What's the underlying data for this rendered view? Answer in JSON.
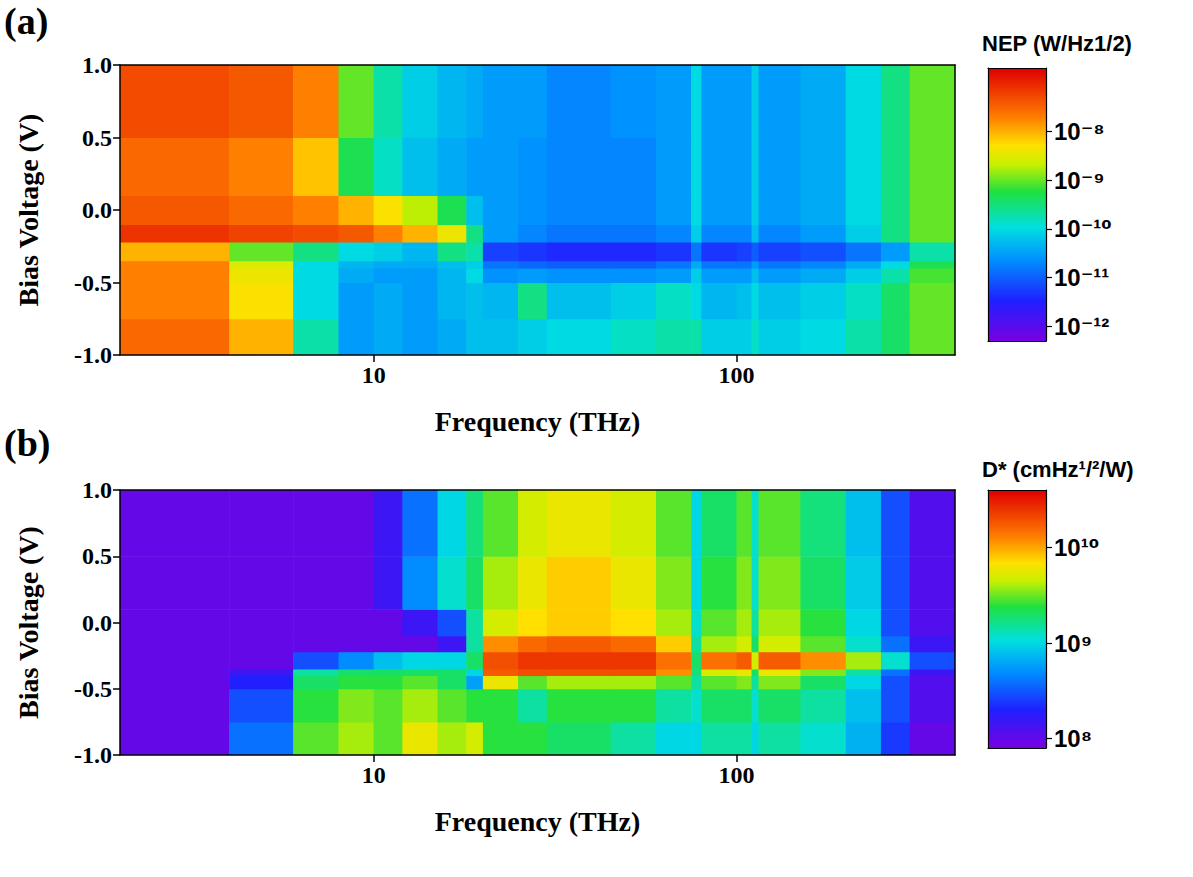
{
  "chart_data": [
    {
      "type": "heatmap",
      "title": "(a)",
      "x_label": "Frequency (THz)",
      "y_label": "Bias Voltage (V)",
      "log": "x",
      "grid": false,
      "xlim": [
        2,
        400
      ],
      "xticks": [
        10,
        100
      ],
      "ylim": [
        -1,
        1
      ],
      "yticks": [
        {
          "value": -1,
          "label": "-1.0"
        },
        {
          "value": -0.5,
          "label": "-0.5"
        },
        {
          "value": 0,
          "label": "0.0"
        },
        {
          "value": 0.5,
          "label": "0.5"
        },
        {
          "value": 1,
          "label": "1.0"
        }
      ],
      "x_edges": [
        2,
        4,
        6,
        8,
        10,
        12,
        15,
        18,
        20,
        25,
        30,
        45,
        60,
        75,
        80,
        100,
        110,
        115,
        150,
        200,
        250,
        300,
        400
      ],
      "y_edges": [
        -1,
        -0.75,
        -0.5,
        -0.4,
        -0.35,
        -0.22,
        -0.1,
        0.1,
        0.5,
        1
      ],
      "values": [
        [
          3e-08,
          1e-08,
          2e-10,
          3e-11,
          4e-11,
          3e-11,
          4e-11,
          6e-11,
          6e-11,
          8e-11,
          1e-10,
          1.5e-10,
          2e-10,
          2e-10,
          8e-11,
          8e-11,
          1.5e-10,
          8e-11,
          1e-10,
          2e-10,
          4e-10,
          1e-09
        ],
        [
          2e-08,
          5e-09,
          1e-10,
          3e-11,
          4e-11,
          3e-11,
          5e-11,
          6e-11,
          5e-11,
          3e-10,
          6e-11,
          8e-11,
          1.5e-10,
          1e-10,
          5e-11,
          6e-11,
          1e-10,
          6e-11,
          8e-11,
          1.5e-10,
          4e-10,
          1e-09
        ],
        [
          2e-08,
          4e-09,
          1e-10,
          4e-11,
          3e-11,
          3e-11,
          5e-11,
          1e-10,
          2.5e-11,
          3e-11,
          2.5e-11,
          2.5e-11,
          3e-11,
          8e-11,
          3e-11,
          3e-11,
          6e-11,
          3e-11,
          4e-11,
          8e-11,
          2e-10,
          8e-10
        ],
        [
          2e-08,
          3e-09,
          1e-10,
          5e-11,
          4e-11,
          4e-11,
          6e-11,
          8e-11,
          1.5e-11,
          1.2e-11,
          1e-11,
          1e-11,
          1.5e-11,
          4e-11,
          1.5e-11,
          1.5e-11,
          3e-11,
          1.5e-11,
          2e-11,
          4e-11,
          1e-10,
          5e-10
        ],
        [
          1e-08,
          1e-09,
          3e-10,
          1e-10,
          8e-11,
          5e-11,
          3e-10,
          2e-10,
          6e-12,
          5e-12,
          4e-12,
          4e-12,
          5e-12,
          1.5e-11,
          5e-12,
          6e-12,
          1e-11,
          6e-12,
          8e-12,
          1.5e-11,
          3e-11,
          2e-10
        ],
        [
          8e-08,
          6e-08,
          5e-08,
          4e-08,
          2e-08,
          1e-08,
          4e-09,
          3e-10,
          3e-11,
          2e-11,
          1.5e-11,
          1.5e-11,
          2e-11,
          8e-11,
          2e-11,
          2e-11,
          6e-11,
          2e-11,
          3e-11,
          8e-11,
          3e-10,
          1e-09
        ],
        [
          4e-08,
          3e-08,
          2e-08,
          1e-08,
          5e-09,
          2e-09,
          5e-10,
          6e-11,
          3e-11,
          2.5e-11,
          2e-11,
          2e-11,
          3e-11,
          1e-10,
          3e-11,
          3e-11,
          8e-11,
          3e-11,
          4e-11,
          1e-10,
          3e-10,
          1e-09
        ],
        [
          3e-08,
          2e-08,
          8e-09,
          5e-10,
          1.5e-10,
          6e-11,
          4e-11,
          3e-11,
          3e-11,
          2.5e-11,
          2e-11,
          2e-11,
          3e-11,
          1e-10,
          3e-11,
          3e-11,
          8e-11,
          3e-11,
          4e-11,
          1e-10,
          3e-10,
          1e-09
        ],
        [
          5e-08,
          4e-08,
          2e-08,
          1e-09,
          2e-10,
          8e-11,
          5e-11,
          4e-11,
          3e-11,
          3e-11,
          2e-11,
          2.5e-11,
          3e-11,
          1e-10,
          3e-11,
          3e-11,
          8e-11,
          3e-11,
          4e-11,
          1e-10,
          3e-10,
          1e-09
        ]
      ],
      "colorbar_label": "NEP (W/Hz1/2)",
      "colorbar_range": [
        5e-13,
        2e-07
      ],
      "colorbar_ticks": [
        {
          "value": 1e-08,
          "label": "10⁻⁸"
        },
        {
          "value": 1e-09,
          "label": "10⁻⁹"
        },
        {
          "value": 1e-10,
          "label": "10⁻¹⁰"
        },
        {
          "value": 1e-11,
          "label": "10⁻¹¹"
        },
        {
          "value": 1e-12,
          "label": "10⁻¹²"
        }
      ]
    },
    {
      "type": "heatmap",
      "title": "(b)",
      "x_label": "Frequency (THz)",
      "y_label": "Bias Voltage (V)",
      "log": "x",
      "grid": false,
      "xlim": [
        2,
        400
      ],
      "xticks": [
        10,
        100
      ],
      "ylim": [
        -1,
        1
      ],
      "yticks": [
        {
          "value": -1,
          "label": "-1.0"
        },
        {
          "value": -0.5,
          "label": "-0.5"
        },
        {
          "value": 0,
          "label": "0.0"
        },
        {
          "value": 0.5,
          "label": "0.5"
        },
        {
          "value": 1,
          "label": "1.0"
        }
      ],
      "x_edges": [
        2,
        4,
        6,
        8,
        10,
        12,
        15,
        18,
        20,
        25,
        30,
        45,
        60,
        75,
        80,
        100,
        110,
        115,
        150,
        200,
        250,
        300,
        400
      ],
      "y_edges": [
        -1,
        -0.75,
        -0.5,
        -0.4,
        -0.35,
        -0.22,
        -0.1,
        0.1,
        0.5,
        1
      ],
      "values": [
        [
          100000000.0,
          400000000.0,
          3000000000.0,
          4000000000.0,
          3000000000.0,
          6000000000.0,
          4000000000.0,
          5000000000.0,
          2500000000.0,
          2500000000.0,
          2000000000.0,
          1500000000.0,
          1000000000.0,
          1000000000.0,
          1500000000.0,
          1500000000.0,
          1000000000.0,
          1500000000.0,
          1200000000.0,
          700000000.0,
          250000000.0,
          100000000.0
        ],
        [
          100000000.0,
          300000000.0,
          2500000000.0,
          3500000000.0,
          3000000000.0,
          4000000000.0,
          3000000000.0,
          2500000000.0,
          2500000000.0,
          1500000000.0,
          2500000000.0,
          2500000000.0,
          1500000000.0,
          1200000000.0,
          2000000000.0,
          2000000000.0,
          1200000000.0,
          2000000000.0,
          1500000000.0,
          800000000.0,
          300000000.0,
          120000000.0
        ],
        [
          100000000.0,
          200000000.0,
          2000000000.0,
          2500000000.0,
          2500000000.0,
          3000000000.0,
          2000000000.0,
          600000000.0,
          6000000000.0,
          3000000000.0,
          4000000000.0,
          4000000000.0,
          3000000000.0,
          1500000000.0,
          3000000000.0,
          3500000000.0,
          1500000000.0,
          3500000000.0,
          2000000000.0,
          1000000000.0,
          300000000.0,
          120000000.0
        ],
        [
          100000000.0,
          150000000.0,
          1500000000.0,
          2000000000.0,
          2000000000.0,
          2000000000.0,
          2000000000.0,
          1000000000.0,
          18000000000.0,
          20000000000.0,
          20000000000.0,
          20000000000.0,
          12000000000.0,
          1800000000.0,
          5000000000.0,
          6000000000.0,
          2000000000.0,
          6000000000.0,
          3500000000.0,
          1500000000.0,
          400000000.0,
          150000000.0
        ],
        [
          100000000.0,
          100000000.0,
          300000000.0,
          500000000.0,
          800000000.0,
          1000000000.0,
          1000000000.0,
          2000000000.0,
          20000000000.0,
          25000000000.0,
          25000000000.0,
          25000000000.0,
          15000000000.0,
          2000000000.0,
          15000000000.0,
          18000000000.0,
          5000000000.0,
          18000000000.0,
          12000000000.0,
          4000000000.0,
          1200000000.0,
          300000000.0
        ],
        [
          100000000.0,
          100000000.0,
          100000000.0,
          100000000.0,
          100000000.0,
          100000000.0,
          150000000.0,
          1500000000.0,
          12000000000.0,
          16000000000.0,
          18000000000.0,
          16000000000.0,
          8000000000.0,
          1500000000.0,
          4000000000.0,
          5000000000.0,
          2000000000.0,
          5000000000.0,
          3000000000.0,
          1200000000.0,
          400000000.0,
          150000000.0
        ],
        [
          100000000.0,
          100000000.0,
          100000000.0,
          100000000.0,
          100000000.0,
          150000000.0,
          300000000.0,
          1500000000.0,
          5000000000.0,
          7000000000.0,
          8000000000.0,
          7000000000.0,
          4000000000.0,
          1200000000.0,
          3000000000.0,
          4000000000.0,
          1500000000.0,
          4000000000.0,
          2500000000.0,
          1000000000.0,
          300000000.0,
          120000000.0
        ],
        [
          100000000.0,
          100000000.0,
          100000000.0,
          100000000.0,
          150000000.0,
          500000000.0,
          1200000000.0,
          2000000000.0,
          4000000000.0,
          6000000000.0,
          8000000000.0,
          6000000000.0,
          3500000000.0,
          1000000000.0,
          2500000000.0,
          3500000000.0,
          1200000000.0,
          3500000000.0,
          2000000000.0,
          900000000.0,
          300000000.0,
          120000000.0
        ],
        [
          100000000.0,
          100000000.0,
          100000000.0,
          100000000.0,
          150000000.0,
          400000000.0,
          1000000000.0,
          1800000000.0,
          3000000000.0,
          5000000000.0,
          6000000000.0,
          5000000000.0,
          3000000000.0,
          1000000000.0,
          2000000000.0,
          3000000000.0,
          1200000000.0,
          3000000000.0,
          1800000000.0,
          800000000.0,
          300000000.0,
          120000000.0
        ]
      ],
      "colorbar_label": "D* (cmHz¹/²/W)",
      "colorbar_range": [
        80000000.0,
        40000000000.0
      ],
      "colorbar_ticks": [
        {
          "value": 10000000000.0,
          "label": "10¹⁰"
        },
        {
          "value": 1000000000.0,
          "label": "10⁹"
        },
        {
          "value": 100000000.0,
          "label": "10⁸"
        }
      ]
    }
  ]
}
